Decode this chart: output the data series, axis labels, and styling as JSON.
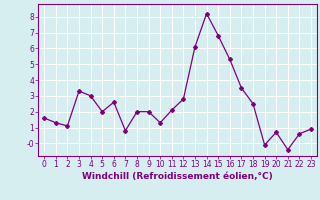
{
  "x": [
    0,
    1,
    2,
    3,
    4,
    5,
    6,
    7,
    8,
    9,
    10,
    11,
    12,
    13,
    14,
    15,
    16,
    17,
    18,
    19,
    20,
    21,
    22,
    23
  ],
  "y": [
    1.6,
    1.3,
    1.1,
    3.3,
    3.0,
    2.0,
    2.6,
    0.8,
    2.0,
    2.0,
    1.3,
    2.1,
    2.8,
    6.1,
    8.2,
    6.8,
    5.3,
    3.5,
    2.5,
    -0.1,
    0.7,
    -0.4,
    0.6,
    0.9
  ],
  "line_color": "#800080",
  "marker": "D",
  "marker_size": 2.0,
  "linewidth": 0.9,
  "xlabel": "Windchill (Refroidissement éolien,°C)",
  "xlabel_fontsize": 6.5,
  "xlim": [
    -0.5,
    23.5
  ],
  "ylim": [
    -0.8,
    8.8
  ],
  "yticks": [
    0,
    1,
    2,
    3,
    4,
    5,
    6,
    7,
    8
  ],
  "ytick_labels": [
    "-0",
    "1",
    "2",
    "3",
    "4",
    "5",
    "6",
    "7",
    "8"
  ],
  "xticks": [
    0,
    1,
    2,
    3,
    4,
    5,
    6,
    7,
    8,
    9,
    10,
    11,
    12,
    13,
    14,
    15,
    16,
    17,
    18,
    19,
    20,
    21,
    22,
    23
  ],
  "bg_color": "#d6eef0",
  "grid_color": "#ffffff",
  "tick_color": "#800080",
  "tick_fontsize": 5.5,
  "tick_label_color": "#800080",
  "spine_color": "#800080"
}
